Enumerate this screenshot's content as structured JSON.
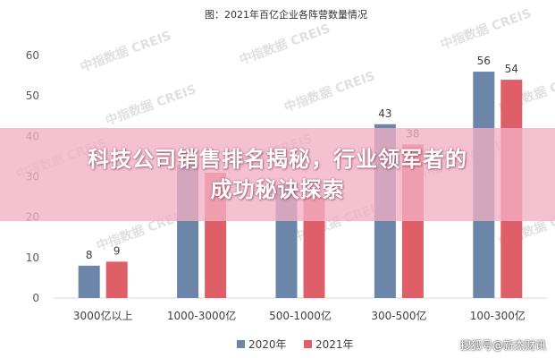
{
  "chart_data": {
    "type": "bar",
    "title": "图：2021年百亿企业各阵营数量情况",
    "categories": [
      "3000亿以上",
      "1000-3000亿",
      "500-1000亿",
      "300-500亿",
      "100-300亿"
    ],
    "series": [
      {
        "name": "2020年",
        "values": [
          8,
          33,
          28,
          43,
          56
        ],
        "color": "#6b86a8"
      },
      {
        "name": "2021年",
        "values": [
          9,
          31,
          25,
          38,
          54
        ],
        "color": "#df5f68"
      }
    ],
    "value_labels": [
      [
        "8",
        "33",
        "",
        "43",
        "56"
      ],
      [
        "9",
        "",
        "25",
        "38",
        "54"
      ]
    ],
    "ylim": [
      0,
      60
    ],
    "yticks": [
      0,
      10,
      20,
      30,
      40,
      50,
      60
    ],
    "legend_position": "bottom",
    "grid": false
  },
  "watermark": "中指数据 CREIS",
  "banner": {
    "line1": "科技公司销售排名揭秘，行业领军者的",
    "line2": "成功秘诀探索"
  },
  "credit": "搜狐号@新杰财讯"
}
